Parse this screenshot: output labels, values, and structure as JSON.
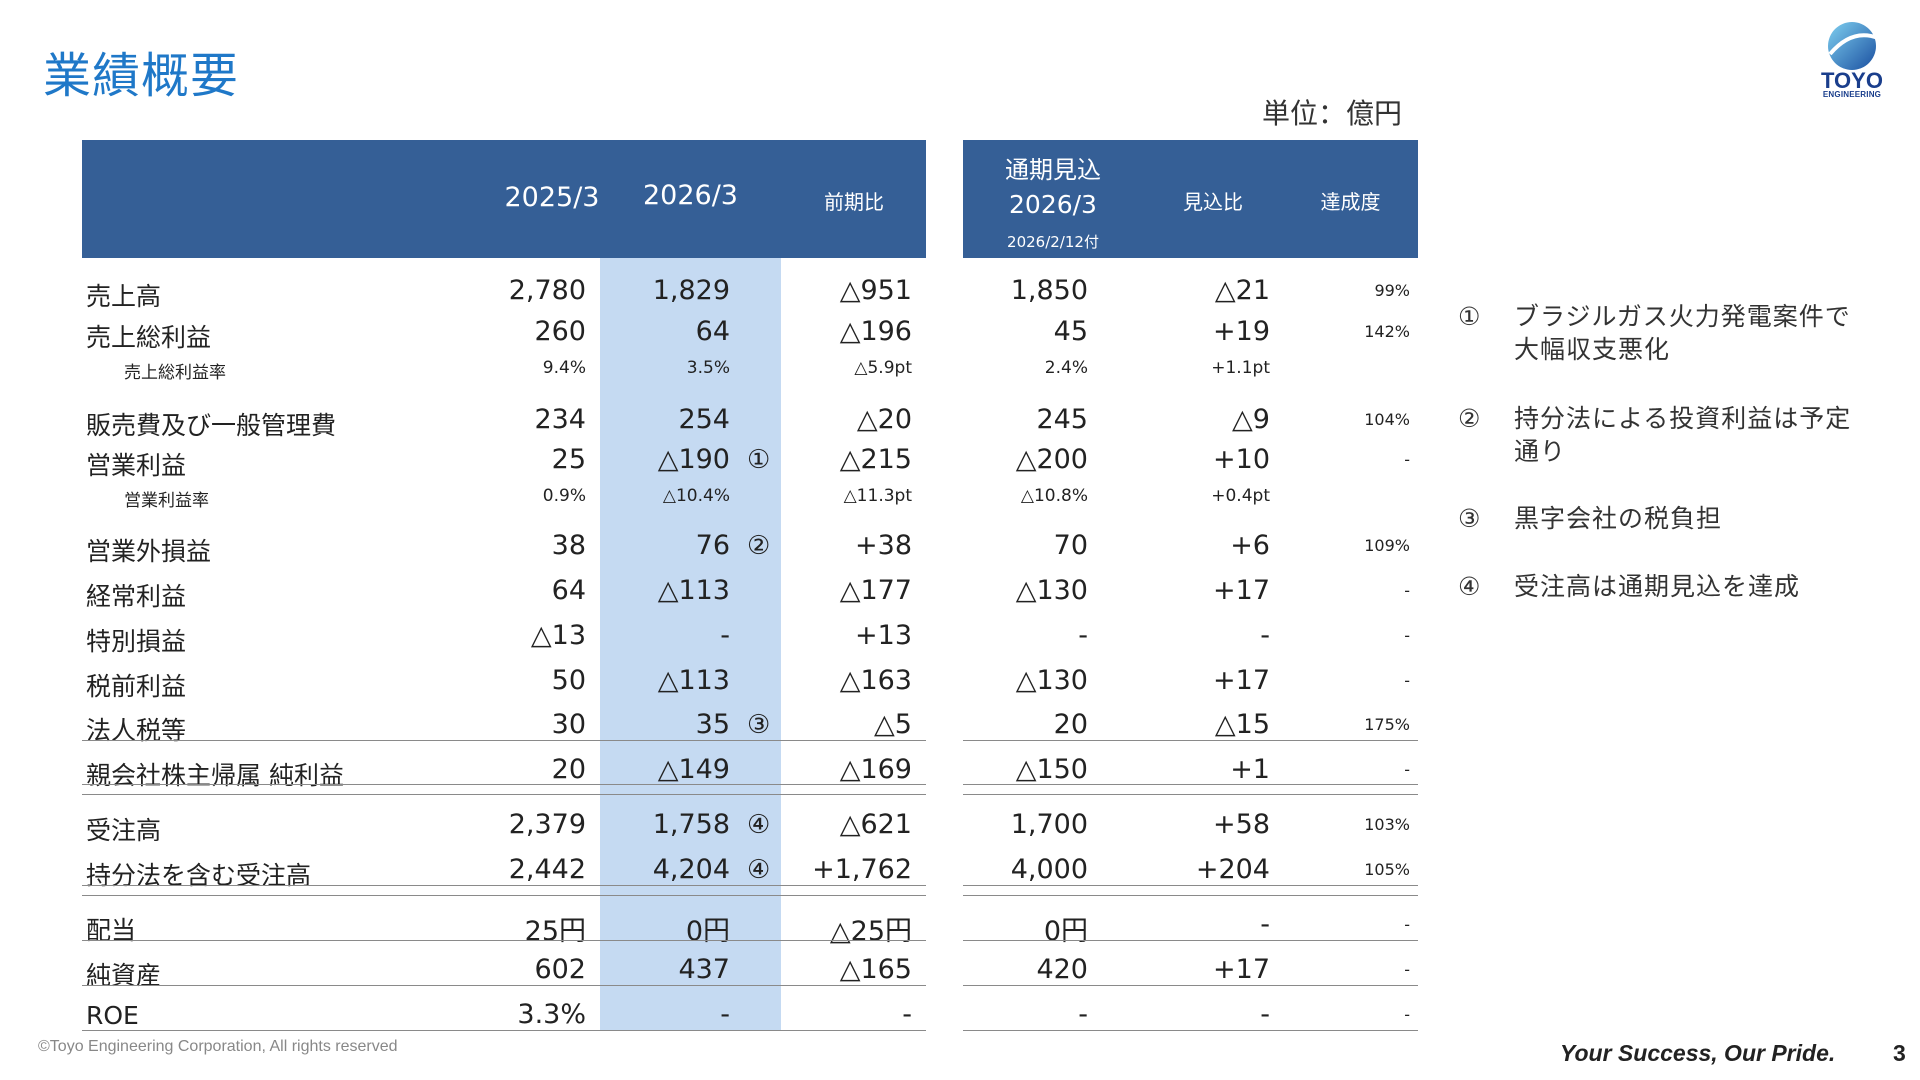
{
  "title": "業績概要",
  "unit": "単位：億円",
  "logo": {
    "name": "TOYO",
    "sub": "ENGINEERING"
  },
  "headers": {
    "y2025": "2025/3",
    "y2026": "2026/3",
    "yoy": "前期比",
    "forecast_line1": "通期見込",
    "forecast_line2": "2026/3",
    "forecast_line3": "2026/2/12付",
    "vs_forecast": "見込比",
    "achievement": "達成度"
  },
  "rows": [
    {
      "label": "売上高",
      "type": "main",
      "y2025": "2,780",
      "y2026": "1,829",
      "mark": "",
      "yoy": "△951",
      "forecast": "1,850",
      "vs": "△21",
      "ach": "99%"
    },
    {
      "label": "売上総利益",
      "type": "main",
      "y2025": "260",
      "y2026": "64",
      "mark": "",
      "yoy": "△196",
      "forecast": "45",
      "vs": "+19",
      "ach": "142%"
    },
    {
      "label": "売上総利益率",
      "type": "sub",
      "y2025": "9.4%",
      "y2026": "3.5%",
      "mark": "",
      "yoy": "△5.9pt",
      "forecast": "2.4%",
      "vs": "+1.1pt",
      "ach": ""
    },
    {
      "label": "販売費及び一般管理費",
      "type": "main",
      "y2025": "234",
      "y2026": "254",
      "mark": "",
      "yoy": "△20",
      "forecast": "245",
      "vs": "△9",
      "ach": "104%"
    },
    {
      "label": "営業利益",
      "type": "main",
      "y2025": "25",
      "y2026": "△190",
      "mark": "①",
      "yoy": "△215",
      "forecast": "△200",
      "vs": "+10",
      "ach": "-"
    },
    {
      "label": "営業利益率",
      "type": "sub",
      "y2025": "0.9%",
      "y2026": "△10.4%",
      "mark": "",
      "yoy": "△11.3pt",
      "forecast": "△10.8%",
      "vs": "+0.4pt",
      "ach": ""
    },
    {
      "label": "営業外損益",
      "type": "main",
      "y2025": "38",
      "y2026": "76",
      "mark": "②",
      "yoy": "+38",
      "forecast": "70",
      "vs": "+6",
      "ach": "109%"
    },
    {
      "label": "経常利益",
      "type": "main",
      "y2025": "64",
      "y2026": "△113",
      "mark": "",
      "yoy": "△177",
      "forecast": "△130",
      "vs": "+17",
      "ach": "-"
    },
    {
      "label": "特別損益",
      "type": "main",
      "y2025": "△13",
      "y2026": "-",
      "mark": "",
      "yoy": "+13",
      "forecast": "-",
      "vs": "-",
      "ach": "-"
    },
    {
      "label": "税前利益",
      "type": "main",
      "y2025": "50",
      "y2026": "△113",
      "mark": "",
      "yoy": "△163",
      "forecast": "△130",
      "vs": "+17",
      "ach": "-"
    },
    {
      "label": "法人税等",
      "type": "main",
      "y2025": "30",
      "y2026": "35",
      "mark": "③",
      "yoy": "△5",
      "forecast": "20",
      "vs": "△15",
      "ach": "175%"
    },
    {
      "label": "親会社株主帰属 純利益",
      "type": "main",
      "y2025": "20",
      "y2026": "△149",
      "mark": "",
      "yoy": "△169",
      "forecast": "△150",
      "vs": "+1",
      "ach": "-"
    },
    {
      "label": "受注高",
      "type": "main",
      "y2025": "2,379",
      "y2026": "1,758",
      "mark": "④",
      "yoy": "△621",
      "forecast": "1,700",
      "vs": "+58",
      "ach": "103%"
    },
    {
      "label": "持分法を含む受注高",
      "type": "main",
      "y2025": "2,442",
      "y2026": "4,204",
      "mark": "④",
      "yoy": "+1,762",
      "forecast": "4,000",
      "vs": "+204",
      "ach": "105%"
    },
    {
      "label": "配当",
      "type": "main",
      "y2025": "25円",
      "y2026": "0円",
      "mark": "",
      "yoy": "△25円",
      "forecast": "0円",
      "vs": "-",
      "ach": "-"
    },
    {
      "label": "純資産",
      "type": "main",
      "y2025": "602",
      "y2026": "437",
      "mark": "",
      "yoy": "△165",
      "forecast": "420",
      "vs": "+17",
      "ach": "-"
    },
    {
      "label": "ROE",
      "type": "main",
      "y2025": "3.3%",
      "y2026": "-",
      "mark": "",
      "yoy": "-",
      "forecast": "-",
      "vs": "-",
      "ach": "-"
    }
  ],
  "notes": [
    {
      "num": "①",
      "text": "ブラジルガス火力発電案件で大幅収支悪化"
    },
    {
      "num": "②",
      "text": "持分法による投資利益は予定通り"
    },
    {
      "num": "③",
      "text": "黒字会社の税負担"
    },
    {
      "num": "④",
      "text": "受注高は通期見込を達成"
    }
  ],
  "footer": {
    "copyright": "©Toyo Engineering Corporation, All rights reserved",
    "tagline": "Your Success, Our Pride.",
    "page": "3"
  }
}
